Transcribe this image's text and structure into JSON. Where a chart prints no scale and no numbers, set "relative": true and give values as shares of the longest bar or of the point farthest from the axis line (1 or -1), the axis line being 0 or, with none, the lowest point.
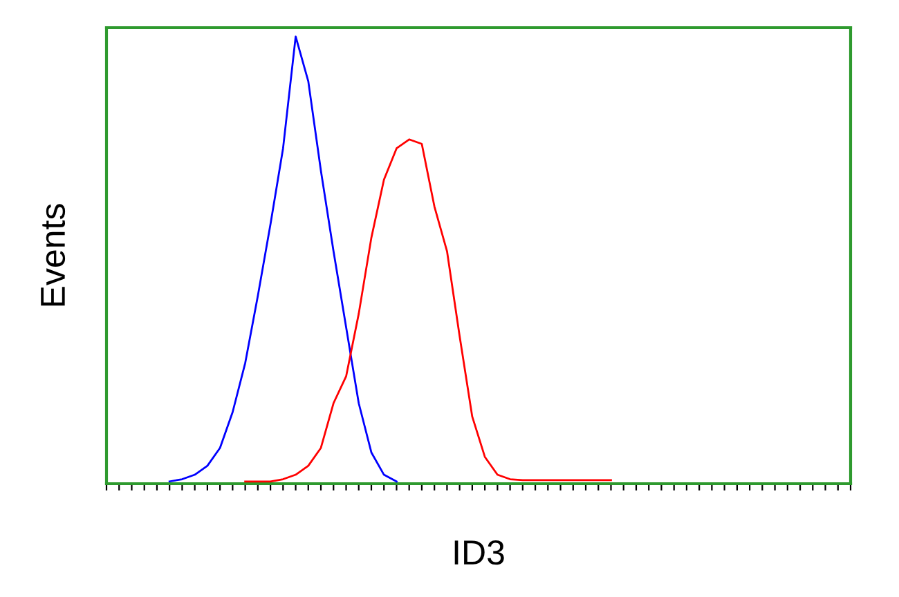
{
  "chart_data": {
    "type": "line",
    "relative": true,
    "xlabel": "ID3",
    "ylabel": "Events",
    "legend": false,
    "categories": [
      null,
      null,
      null,
      null,
      null,
      null,
      null,
      null,
      null,
      null,
      null,
      null,
      null,
      null,
      null,
      null,
      null,
      null,
      null,
      null,
      null,
      null,
      null,
      null,
      null,
      null,
      null,
      null,
      null,
      null,
      null,
      null,
      null,
      null,
      null,
      null,
      null,
      null,
      null,
      null,
      null,
      null,
      null,
      null,
      null,
      null,
      null,
      null,
      null,
      null,
      null,
      null,
      null,
      null,
      null,
      null,
      null,
      null,
      null,
      null
    ],
    "series": [
      {
        "color": "#0000ff",
        "values": [
          null,
          null,
          null,
          null,
          null,
          0.005,
          0.01,
          0.02,
          0.04,
          0.08,
          0.16,
          0.27,
          0.42,
          0.58,
          0.75,
          1.0,
          0.9,
          0.7,
          0.52,
          0.35,
          0.18,
          0.07,
          0.02,
          0.005,
          null,
          null,
          null,
          null,
          null,
          null,
          null,
          null,
          null,
          null,
          null,
          null,
          null,
          null,
          null,
          null,
          null,
          null,
          null,
          null,
          null,
          null,
          null,
          null,
          null,
          null,
          null,
          null,
          null,
          null,
          null,
          null,
          null,
          null,
          null,
          null
        ]
      },
      {
        "color": "#ff0000",
        "values": [
          null,
          null,
          null,
          null,
          null,
          null,
          null,
          null,
          null,
          null,
          null,
          0.005,
          0.005,
          0.005,
          0.01,
          0.02,
          0.04,
          0.08,
          0.18,
          0.24,
          0.38,
          0.55,
          0.68,
          0.75,
          0.77,
          0.76,
          0.62,
          0.52,
          0.33,
          0.15,
          0.06,
          0.02,
          0.01,
          0.008,
          0.008,
          0.008,
          0.008,
          0.008,
          0.008,
          0.008,
          0.008,
          null,
          null,
          null,
          null,
          null,
          null,
          null,
          null,
          null,
          null,
          null,
          null,
          null,
          null,
          null,
          null,
          null,
          null,
          null
        ]
      }
    ]
  }
}
